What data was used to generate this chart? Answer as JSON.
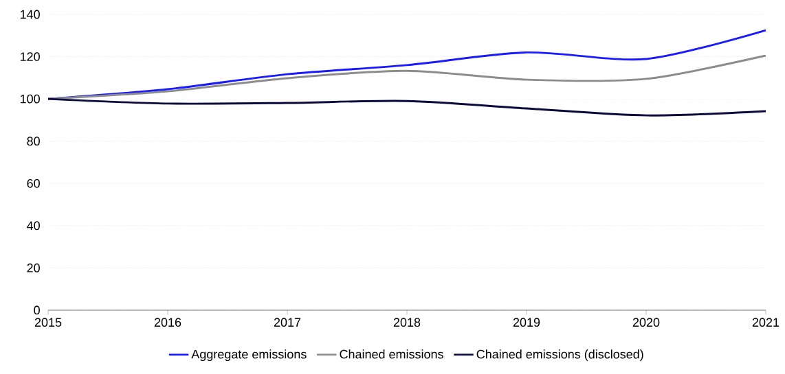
{
  "chart_data": {
    "type": "line",
    "x": [
      2015,
      2016,
      2017,
      2018,
      2019,
      2020,
      2021
    ],
    "series": [
      {
        "name": "Aggregate emissions",
        "color": "#1a1aff",
        "values": [
          100,
          104.6,
          111.7,
          116,
          122,
          118.9,
          132.5
        ]
      },
      {
        "name": "Chained emissions",
        "color": "#8c8c8c",
        "values": [
          100,
          103.6,
          109.8,
          113.3,
          109.1,
          109.5,
          120.5
        ]
      },
      {
        "name": "Chained emissions (disclosed)",
        "color": "#0a0a3c",
        "values": [
          100,
          97.8,
          98.1,
          99,
          95.5,
          92.2,
          94.2
        ]
      }
    ],
    "xlim": [
      2015,
      2021
    ],
    "xticks": [
      2015,
      2016,
      2017,
      2018,
      2019,
      2020,
      2021
    ],
    "ylim": [
      0,
      140
    ],
    "yticks": [
      0,
      20,
      40,
      60,
      80,
      100,
      120,
      140
    ],
    "grid": "y",
    "legend": "bottom",
    "marker": "none",
    "line_style": "solid"
  }
}
